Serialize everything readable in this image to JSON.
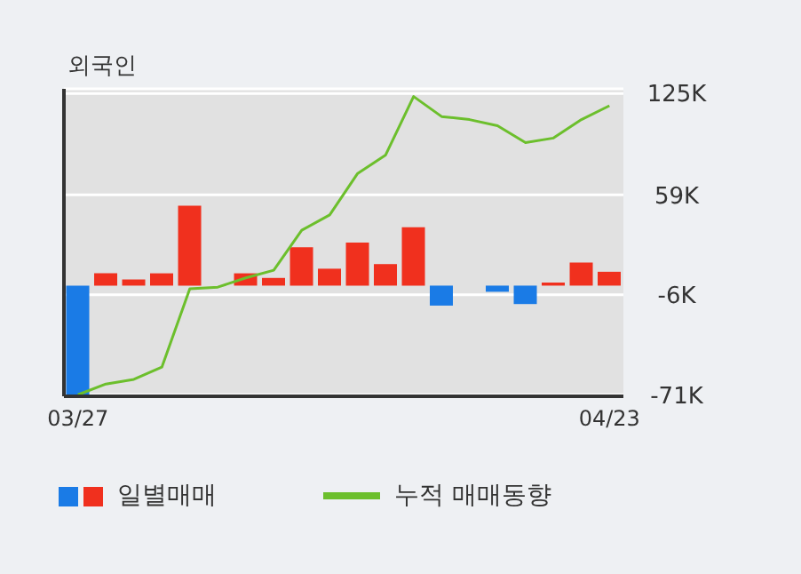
{
  "chart_data": {
    "type": "bar",
    "title": "외국인",
    "categories": [
      "03/27",
      null,
      null,
      null,
      null,
      null,
      null,
      null,
      null,
      null,
      null,
      null,
      null,
      null,
      null,
      null,
      null,
      null,
      null,
      "04/23"
    ],
    "series": [
      {
        "name": "일별매매",
        "colors": [
          "#1a7be6",
          "#f0301e",
          "#f0301e",
          "#f0301e",
          "#f0301e",
          "#f0301e",
          "#f0301e",
          "#f0301e",
          "#f0301e",
          "#f0301e",
          "#f0301e",
          "#f0301e",
          "#f0301e",
          "#1a7be6",
          "#f0301e",
          "#1a7be6",
          "#1a7be6",
          "#f0301e",
          "#f0301e",
          "#f0301e"
        ],
        "values": [
          -71000,
          8000,
          4000,
          8000,
          52000,
          0,
          8000,
          5000,
          25000,
          11000,
          28000,
          14000,
          38000,
          -13000,
          0,
          -4000,
          -12000,
          2000,
          15000,
          9000
        ]
      },
      {
        "name": "누적 매매동향",
        "type": "line",
        "color": "#6cbf2c",
        "values": [
          -71000,
          -64000,
          -61000,
          -53000,
          -2000,
          -1000,
          5000,
          10000,
          36000,
          46000,
          73000,
          85000,
          123000,
          110000,
          108000,
          104000,
          93000,
          96000,
          108000,
          117000
        ]
      }
    ],
    "ylim": [
      -72000,
      128000
    ],
    "yticks": [
      {
        "value": 125000,
        "label": "125K"
      },
      {
        "value": 59000,
        "label": "59K"
      },
      {
        "value": -6000,
        "label": "-6K"
      },
      {
        "value": -71000,
        "label": "-71K"
      }
    ],
    "grid": "y",
    "legend": "bottom",
    "marker": "none",
    "line_style": "solid"
  }
}
